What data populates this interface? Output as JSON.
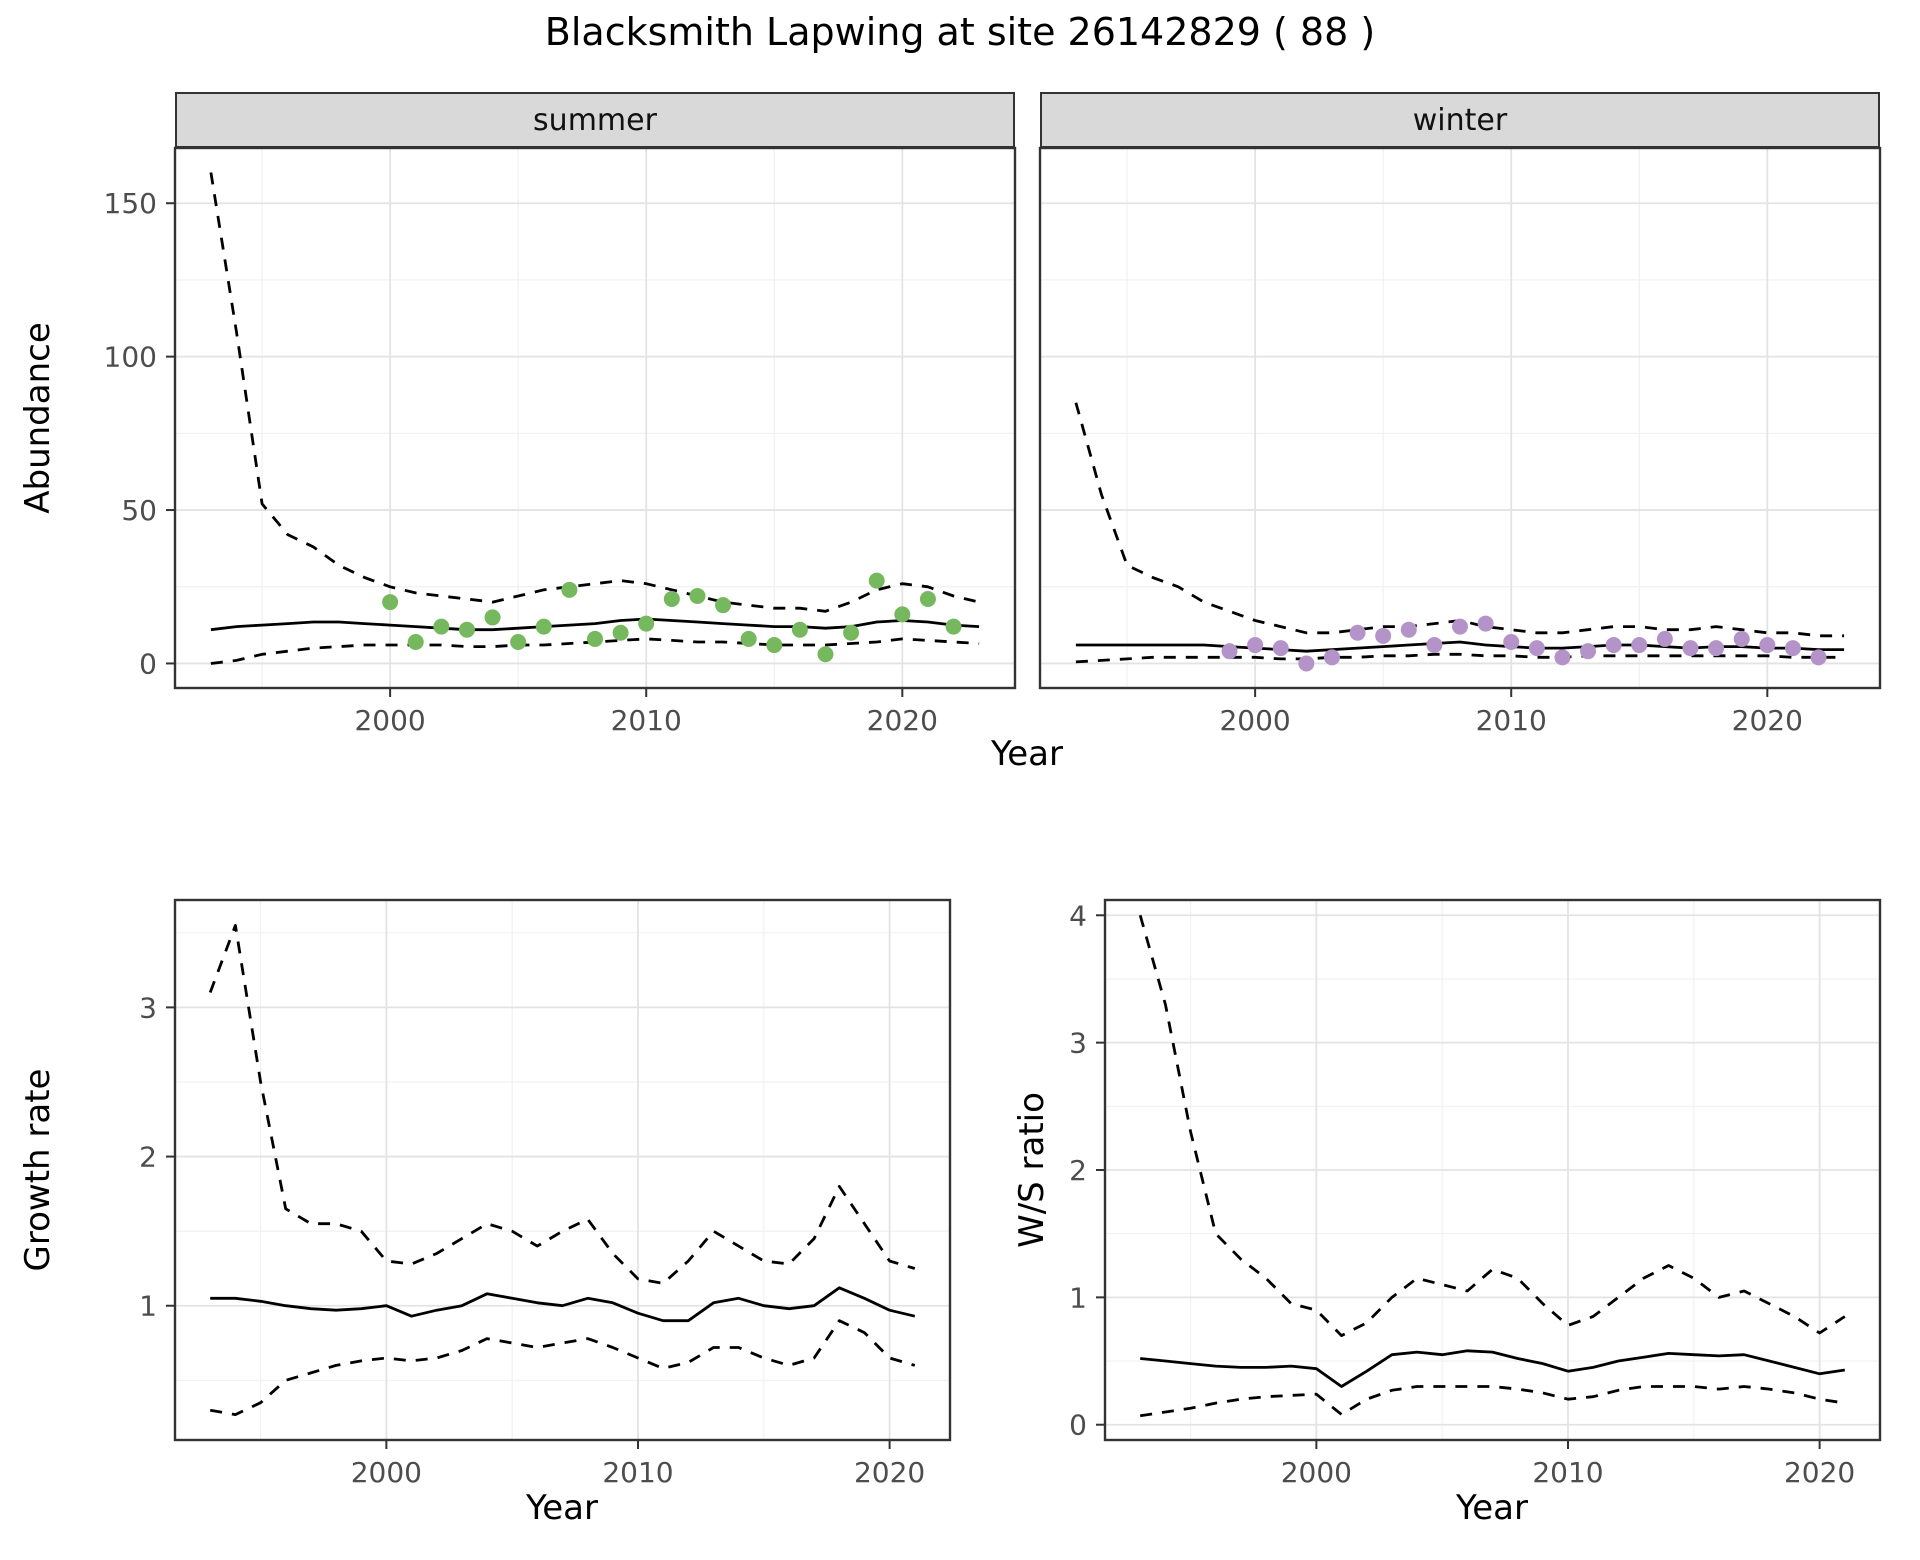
{
  "title": "Blacksmith Lapwing at site 26142829 ( 88 )",
  "facets": {
    "summer": "summer",
    "winter": "winter"
  },
  "axes": {
    "top_x_label": "Year",
    "top_y_label": "Abundance",
    "bl_x_label": "Year",
    "bl_y_label": "Growth rate",
    "br_x_label": "Year",
    "br_y_label": "W/S ratio"
  },
  "colors": {
    "summer_point": "#75b85e",
    "winter_point": "#b494c8",
    "line": "#000000",
    "grid_major": "#e3e3e3",
    "grid_minor": "#f1f1f1",
    "panel_border": "#333333",
    "strip_bg": "#d9d9d9",
    "tick_label": "#4d4d4d"
  },
  "chart_data": [
    {
      "id": "abundance-summer",
      "type": "line",
      "facet_label": "summer",
      "xlabel": "Year",
      "ylabel": "Abundance",
      "x": [
        1993,
        1994,
        1995,
        1996,
        1997,
        1998,
        1999,
        2000,
        2001,
        2002,
        2003,
        2004,
        2005,
        2006,
        2007,
        2008,
        2009,
        2010,
        2011,
        2012,
        2013,
        2014,
        2015,
        2016,
        2017,
        2018,
        2019,
        2020,
        2021,
        2022,
        2023
      ],
      "xlim": [
        1991.6,
        2024.4
      ],
      "ylim": [
        -8,
        168
      ],
      "xticks": [
        2000,
        2010,
        2020
      ],
      "yticks": [
        0,
        50,
        100,
        150
      ],
      "show_ytick_labels": true,
      "series": [
        {
          "name": "upper_95ci",
          "style": "dashed",
          "values": [
            160,
            108,
            52,
            42,
            38,
            32,
            28,
            25,
            23,
            22,
            21,
            20,
            22,
            24,
            25,
            26,
            27,
            26,
            24,
            22,
            20,
            19,
            18,
            18,
            17,
            20,
            24,
            26,
            25,
            22,
            20
          ]
        },
        {
          "name": "mean",
          "style": "solid",
          "values": [
            11,
            12,
            12.5,
            13,
            13.5,
            13.5,
            13,
            12.5,
            12,
            11.5,
            11,
            11,
            11.5,
            12,
            12.5,
            13,
            14,
            14.5,
            14,
            13.5,
            13,
            12.5,
            12,
            12,
            11.5,
            12,
            13.5,
            14,
            13.5,
            12.5,
            12
          ]
        },
        {
          "name": "lower_95ci",
          "style": "dashed",
          "values": [
            0,
            1,
            3,
            4,
            5,
            5.5,
            6,
            6,
            6,
            6,
            5.5,
            5.5,
            6,
            6,
            6.5,
            7,
            7.5,
            8,
            7.5,
            7,
            7,
            6.5,
            6,
            6,
            6,
            6.5,
            7,
            8,
            7.5,
            7,
            6.5
          ]
        }
      ],
      "points": {
        "name": "observed_counts_summer",
        "color_key": "summer_point",
        "x": [
          2000,
          2001,
          2002,
          2003,
          2004,
          2005,
          2006,
          2007,
          2008,
          2009,
          2010,
          2011,
          2012,
          2013,
          2014,
          2015,
          2016,
          2017,
          2018,
          2019,
          2020,
          2021,
          2022
        ],
        "y": [
          20,
          7,
          12,
          11,
          15,
          7,
          12,
          24,
          8,
          10,
          13,
          21,
          22,
          19,
          8,
          6,
          11,
          3,
          10,
          27,
          16,
          21,
          12
        ]
      }
    },
    {
      "id": "abundance-winter",
      "type": "line",
      "facet_label": "winter",
      "xlabel": "Year",
      "ylabel": "Abundance",
      "x": [
        1993,
        1994,
        1995,
        1996,
        1997,
        1998,
        1999,
        2000,
        2001,
        2002,
        2003,
        2004,
        2005,
        2006,
        2007,
        2008,
        2009,
        2010,
        2011,
        2012,
        2013,
        2014,
        2015,
        2016,
        2017,
        2018,
        2019,
        2020,
        2021,
        2022,
        2023
      ],
      "xlim": [
        1991.6,
        2024.4
      ],
      "ylim": [
        -8,
        168
      ],
      "xticks": [
        2000,
        2010,
        2020
      ],
      "yticks": [
        0,
        50,
        100,
        150
      ],
      "show_ytick_labels": false,
      "series": [
        {
          "name": "upper_95ci",
          "style": "dashed",
          "values": [
            85,
            55,
            32,
            28,
            25,
            20,
            17,
            14,
            12,
            10,
            10,
            11,
            12,
            12,
            13,
            14,
            12,
            11,
            10,
            10,
            11,
            12,
            12,
            11,
            11,
            12,
            11,
            10,
            10,
            9,
            9
          ]
        },
        {
          "name": "mean",
          "style": "solid",
          "values": [
            6,
            6,
            6,
            6,
            6,
            6,
            5.5,
            5,
            4.5,
            4,
            4.5,
            5,
            5.5,
            6,
            6.5,
            7,
            6,
            5.5,
            5,
            5,
            5.5,
            6,
            6,
            5.5,
            5,
            5.5,
            5.5,
            5,
            5,
            4.5,
            4.5
          ]
        },
        {
          "name": "lower_95ci",
          "style": "dashed",
          "values": [
            0.5,
            1,
            1.5,
            2,
            2,
            2,
            2,
            2,
            1.5,
            1.5,
            2,
            2,
            2.5,
            2.5,
            3,
            3,
            2.5,
            2.5,
            2,
            2,
            2.5,
            2.5,
            2.5,
            2.5,
            2.5,
            2.5,
            2.5,
            2.5,
            2,
            2,
            2
          ]
        }
      ],
      "points": {
        "name": "observed_counts_winter",
        "color_key": "winter_point",
        "x": [
          1999,
          2000,
          2001,
          2002,
          2003,
          2004,
          2005,
          2006,
          2007,
          2008,
          2009,
          2010,
          2011,
          2012,
          2013,
          2014,
          2015,
          2016,
          2017,
          2018,
          2019,
          2020,
          2021,
          2022
        ],
        "y": [
          4,
          6,
          5,
          0,
          2,
          10,
          9,
          11,
          6,
          12,
          13,
          7,
          5,
          2,
          4,
          6,
          6,
          8,
          5,
          5,
          8,
          6,
          5,
          2
        ]
      }
    },
    {
      "id": "growth-rate",
      "type": "line",
      "xlabel": "Year",
      "ylabel": "Growth rate",
      "x": [
        1993,
        1994,
        1995,
        1996,
        1997,
        1998,
        1999,
        2000,
        2001,
        2002,
        2003,
        2004,
        2005,
        2006,
        2007,
        2008,
        2009,
        2010,
        2011,
        2012,
        2013,
        2014,
        2015,
        2016,
        2017,
        2018,
        2019,
        2020,
        2021
      ],
      "xlim": [
        1991.6,
        2022.4
      ],
      "ylim": [
        0.1,
        3.72
      ],
      "xticks": [
        2000,
        2010,
        2020
      ],
      "yticks": [
        1,
        2,
        3
      ],
      "show_ytick_labels": true,
      "series": [
        {
          "name": "upper_95ci",
          "style": "dashed",
          "values": [
            3.1,
            3.55,
            2.5,
            1.65,
            1.55,
            1.55,
            1.5,
            1.3,
            1.28,
            1.35,
            1.45,
            1.55,
            1.5,
            1.4,
            1.5,
            1.58,
            1.35,
            1.18,
            1.15,
            1.3,
            1.5,
            1.4,
            1.3,
            1.28,
            1.45,
            1.8,
            1.55,
            1.3,
            1.25
          ]
        },
        {
          "name": "mean",
          "style": "solid",
          "values": [
            1.05,
            1.05,
            1.03,
            1.0,
            0.98,
            0.97,
            0.98,
            1.0,
            0.93,
            0.97,
            1.0,
            1.08,
            1.05,
            1.02,
            1.0,
            1.05,
            1.02,
            0.95,
            0.9,
            0.9,
            1.02,
            1.05,
            1.0,
            0.98,
            1.0,
            1.12,
            1.05,
            0.97,
            0.93
          ]
        },
        {
          "name": "lower_95ci",
          "style": "dashed",
          "values": [
            0.3,
            0.27,
            0.35,
            0.5,
            0.55,
            0.6,
            0.63,
            0.65,
            0.63,
            0.65,
            0.7,
            0.78,
            0.75,
            0.72,
            0.75,
            0.78,
            0.72,
            0.65,
            0.58,
            0.62,
            0.72,
            0.72,
            0.65,
            0.6,
            0.65,
            0.9,
            0.82,
            0.65,
            0.6
          ]
        }
      ]
    },
    {
      "id": "ws-ratio",
      "type": "line",
      "xlabel": "Year",
      "ylabel": "W/S ratio",
      "x": [
        1993,
        1994,
        1995,
        1996,
        1997,
        1998,
        1999,
        2000,
        2001,
        2002,
        2003,
        2004,
        2005,
        2006,
        2007,
        2008,
        2009,
        2010,
        2011,
        2012,
        2013,
        2014,
        2015,
        2016,
        2017,
        2018,
        2019,
        2020,
        2021
      ],
      "xlim": [
        1991.6,
        2022.4
      ],
      "ylim": [
        -0.12,
        4.12
      ],
      "xticks": [
        2000,
        2010,
        2020
      ],
      "yticks": [
        0,
        1,
        2,
        3,
        4
      ],
      "show_ytick_labels": true,
      "series": [
        {
          "name": "upper_95ci",
          "style": "dashed",
          "values": [
            4.0,
            3.3,
            2.3,
            1.5,
            1.3,
            1.15,
            0.95,
            0.9,
            0.7,
            0.8,
            1.0,
            1.15,
            1.1,
            1.05,
            1.22,
            1.15,
            0.95,
            0.78,
            0.85,
            1.0,
            1.15,
            1.25,
            1.15,
            1.0,
            1.05,
            0.95,
            0.85,
            0.72,
            0.85
          ]
        },
        {
          "name": "mean",
          "style": "solid",
          "values": [
            0.52,
            0.5,
            0.48,
            0.46,
            0.45,
            0.45,
            0.46,
            0.44,
            0.3,
            0.42,
            0.55,
            0.57,
            0.55,
            0.58,
            0.57,
            0.52,
            0.48,
            0.42,
            0.45,
            0.5,
            0.53,
            0.56,
            0.55,
            0.54,
            0.55,
            0.5,
            0.45,
            0.4,
            0.43
          ]
        },
        {
          "name": "lower_95ci",
          "style": "dashed",
          "values": [
            0.07,
            0.1,
            0.13,
            0.17,
            0.2,
            0.22,
            0.23,
            0.24,
            0.08,
            0.2,
            0.27,
            0.3,
            0.3,
            0.3,
            0.3,
            0.28,
            0.25,
            0.2,
            0.22,
            0.27,
            0.3,
            0.3,
            0.3,
            0.28,
            0.3,
            0.28,
            0.25,
            0.2,
            0.17
          ]
        }
      ]
    }
  ]
}
